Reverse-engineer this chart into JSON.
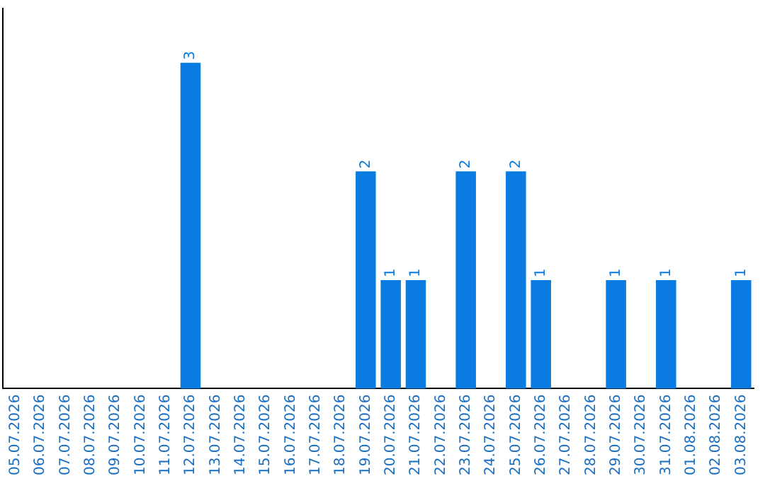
{
  "chart_data": {
    "type": "bar",
    "categories": [
      "05.07.2026",
      "06.07.2026",
      "07.07.2026",
      "08.07.2026",
      "09.07.2026",
      "10.07.2026",
      "11.07.2026",
      "12.07.2026",
      "13.07.2026",
      "14.07.2026",
      "15.07.2026",
      "16.07.2026",
      "17.07.2026",
      "18.07.2026",
      "19.07.2026",
      "20.07.2026",
      "21.07.2026",
      "22.07.2026",
      "23.07.2026",
      "24.07.2026",
      "25.07.2026",
      "26.07.2026",
      "27.07.2026",
      "28.07.2026",
      "29.07.2026",
      "30.07.2026",
      "31.07.2026",
      "01.08.2026",
      "02.08.2026",
      "03.08.2026"
    ],
    "values": [
      0,
      0,
      0,
      0,
      0,
      0,
      0,
      3,
      0,
      0,
      0,
      0,
      0,
      0,
      2,
      1,
      1,
      0,
      2,
      0,
      2,
      1,
      0,
      0,
      1,
      0,
      1,
      0,
      0,
      1
    ],
    "value_labels": [
      null,
      null,
      null,
      null,
      null,
      null,
      null,
      "3",
      null,
      null,
      null,
      null,
      null,
      null,
      "2",
      "1",
      "1",
      null,
      "2",
      null,
      "2",
      "1",
      null,
      null,
      "1",
      null,
      "1",
      null,
      null,
      "1"
    ],
    "color": "#0a7be0",
    "grid": false,
    "legend": false,
    "tick_labels": "x"
  }
}
